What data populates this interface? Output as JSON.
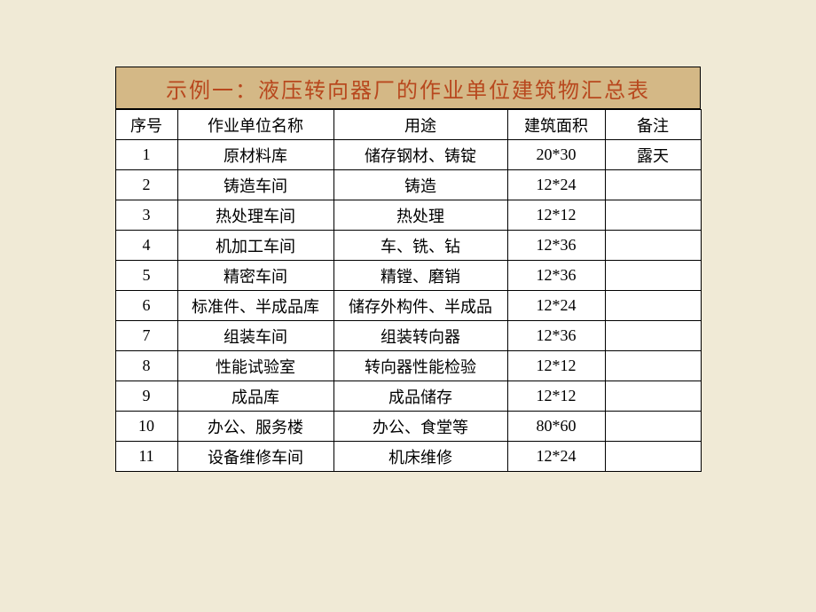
{
  "title": "示例一：液压转向器厂的作业单位建筑物汇总表",
  "title_color": "#b8481e",
  "title_bg": "#d4b886",
  "page_bg": "#f0ead6",
  "table_bg": "#ffffff",
  "border_color": "#000000",
  "title_fontsize": 24,
  "cell_fontsize": 18,
  "columns": {
    "seq": "序号",
    "name": "作业单位名称",
    "purpose": "用途",
    "area": "建筑面积",
    "note": "备注"
  },
  "rows": [
    {
      "seq": "1",
      "name": "原材料库",
      "purpose": "储存钢材、铸锭",
      "area": "20*30",
      "note": "露天"
    },
    {
      "seq": "2",
      "name": "铸造车间",
      "purpose": "铸造",
      "area": "12*24",
      "note": ""
    },
    {
      "seq": "3",
      "name": "热处理车间",
      "purpose": "热处理",
      "area": "12*12",
      "note": ""
    },
    {
      "seq": "4",
      "name": "机加工车间",
      "purpose": "车、铣、钻",
      "area": "12*36",
      "note": ""
    },
    {
      "seq": "5",
      "name": "精密车间",
      "purpose": "精镗、磨销",
      "area": "12*36",
      "note": ""
    },
    {
      "seq": "6",
      "name": "标准件、半成品库",
      "purpose": "储存外构件、半成品",
      "area": "12*24",
      "note": ""
    },
    {
      "seq": "7",
      "name": "组装车间",
      "purpose": "组装转向器",
      "area": "12*36",
      "note": ""
    },
    {
      "seq": "8",
      "name": "性能试验室",
      "purpose": "转向器性能检验",
      "area": "12*12",
      "note": ""
    },
    {
      "seq": "9",
      "name": "成品库",
      "purpose": "成品储存",
      "area": "12*12",
      "note": ""
    },
    {
      "seq": "10",
      "name": "办公、服务楼",
      "purpose": "办公、食堂等",
      "area": "80*60",
      "note": ""
    },
    {
      "seq": "11",
      "name": "设备维修车间",
      "purpose": "机床维修",
      "area": "12*24",
      "note": ""
    }
  ]
}
